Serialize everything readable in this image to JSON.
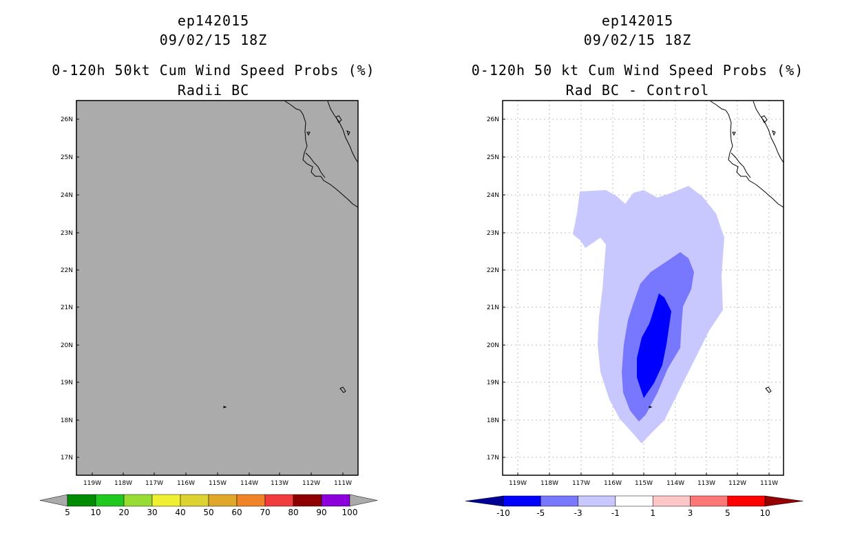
{
  "left_panel": {
    "storm_id": "ep142015",
    "datetime": "09/02/15 18Z",
    "product": "0-120h 50kt Cum Wind Speed Probs (%)",
    "subtitle": "Radii BC",
    "map_fill_color": "#ababab",
    "lat_labels": [
      "26N",
      "25N",
      "24N",
      "23N",
      "22N",
      "21N",
      "20N",
      "19N",
      "18N",
      "17N"
    ],
    "lon_labels": [
      "119W",
      "118W",
      "117W",
      "116W",
      "115W",
      "114W",
      "113W",
      "112W",
      "111W"
    ],
    "colorbar": {
      "colors": [
        "#aaaaaa",
        "#008c00",
        "#20c820",
        "#96dc32",
        "#f0f032",
        "#dcd232",
        "#e0a829",
        "#f08228",
        "#f03c3c",
        "#8c0000",
        "#8c00dc",
        "#aaaaaa"
      ],
      "labels": [
        "5",
        "10",
        "20",
        "30",
        "40",
        "50",
        "60",
        "70",
        "80",
        "90",
        "100"
      ]
    }
  },
  "right_panel": {
    "storm_id": "ep142015",
    "datetime": "09/02/15 18Z",
    "product": "0-120h 50 kt Cum Wind Speed Probs (%)",
    "subtitle": "Rad BC - Control",
    "lat_labels": [
      "26N",
      "25N",
      "24N",
      "23N",
      "22N",
      "21N",
      "20N",
      "19N",
      "18N",
      "17N"
    ],
    "lon_labels": [
      "119W",
      "118W",
      "117W",
      "116W",
      "115W",
      "114W",
      "113W",
      "112W",
      "111W"
    ],
    "contour_colors": {
      "band_1_to_3": "#c8c8ff",
      "band_3_to_5": "#7878ff",
      "band_5_to_10": "#0000ff"
    },
    "colorbar": {
      "colors": [
        "#000096",
        "#0000ff",
        "#7878ff",
        "#c8c8ff",
        "#ffffff",
        "#ffc8c8",
        "#ff7878",
        "#ff0000",
        "#960000"
      ],
      "labels": [
        "-10",
        "-5",
        "-3",
        "-1",
        "1",
        "3",
        "5",
        "10"
      ]
    }
  }
}
